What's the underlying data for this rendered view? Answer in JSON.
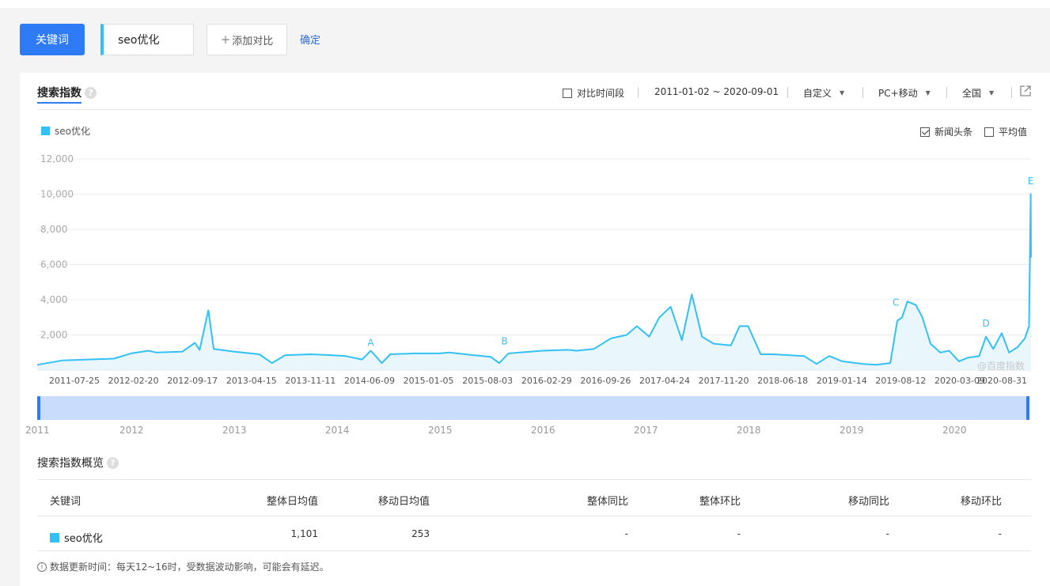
{
  "toolbar": {
    "keyword_button": "关键词",
    "keyword_value": "seo优化",
    "add_compare": "添加对比",
    "confirm": "确定"
  },
  "header": {
    "title": "搜索指数",
    "help": "?",
    "compare_period": "对比时间段",
    "date_range": "2011-01-02 ~ 2020-09-01",
    "custom": "自定义",
    "device": "PC+移动",
    "region": "全国"
  },
  "chart_options": {
    "news_headlines": "新闻头条",
    "news_checked": true,
    "average": "平均值",
    "average_checked": false
  },
  "watermark": "@百度指数",
  "colors": {
    "accent": "#2f7bf6",
    "series": "#33c1f5",
    "link": "#2f6bd6"
  },
  "chart_data": {
    "type": "area",
    "series": [
      {
        "name": "seo优化",
        "points": [
          [
            "2011-01-02",
            300
          ],
          [
            "2011-04-01",
            550
          ],
          [
            "2011-07-01",
            600
          ],
          [
            "2011-10-01",
            650
          ],
          [
            "2011-12-01",
            950
          ],
          [
            "2012-02-01",
            1100
          ],
          [
            "2012-03-01",
            1000
          ],
          [
            "2012-06-01",
            1050
          ],
          [
            "2012-07-15",
            1550
          ],
          [
            "2012-08-01",
            1150
          ],
          [
            "2012-09-01",
            3400
          ],
          [
            "2012-09-20",
            1200
          ],
          [
            "2012-12-01",
            1050
          ],
          [
            "2013-03-01",
            900
          ],
          [
            "2013-04-15",
            400
          ],
          [
            "2013-06-01",
            850
          ],
          [
            "2013-09-01",
            900
          ],
          [
            "2013-11-11",
            850
          ],
          [
            "2014-01-01",
            800
          ],
          [
            "2014-03-01",
            600
          ],
          [
            "2014-04-01",
            1100
          ],
          [
            "2014-05-10",
            400
          ],
          [
            "2014-06-09",
            900
          ],
          [
            "2014-09-01",
            950
          ],
          [
            "2014-12-01",
            950
          ],
          [
            "2015-01-05",
            1000
          ],
          [
            "2015-04-01",
            850
          ],
          [
            "2015-06-01",
            750
          ],
          [
            "2015-07-01",
            400
          ],
          [
            "2015-08-03",
            950
          ],
          [
            "2015-12-01",
            1100
          ],
          [
            "2016-02-29",
            1150
          ],
          [
            "2016-04-01",
            1100
          ],
          [
            "2016-06-01",
            1200
          ],
          [
            "2016-08-01",
            1800
          ],
          [
            "2016-09-26",
            2000
          ],
          [
            "2016-11-01",
            2500
          ],
          [
            "2016-12-15",
            1900
          ],
          [
            "2017-01-20",
            3000
          ],
          [
            "2017-03-01",
            3600
          ],
          [
            "2017-04-10",
            1700
          ],
          [
            "2017-05-15",
            4300
          ],
          [
            "2017-06-20",
            1900
          ],
          [
            "2017-08-01",
            1500
          ],
          [
            "2017-10-01",
            1400
          ],
          [
            "2017-11-01",
            2500
          ],
          [
            "2017-12-01",
            2500
          ],
          [
            "2018-01-15",
            900
          ],
          [
            "2018-03-01",
            900
          ],
          [
            "2018-06-18",
            800
          ],
          [
            "2018-08-01",
            350
          ],
          [
            "2018-09-15",
            800
          ],
          [
            "2018-11-01",
            500
          ],
          [
            "2019-01-14",
            350
          ],
          [
            "2019-03-01",
            300
          ],
          [
            "2019-04-20",
            400
          ],
          [
            "2019-05-15",
            2800
          ],
          [
            "2019-06-01",
            3000
          ],
          [
            "2019-06-20",
            3900
          ],
          [
            "2019-07-20",
            3700
          ],
          [
            "2019-08-12",
            3000
          ],
          [
            "2019-09-10",
            1500
          ],
          [
            "2019-10-15",
            1000
          ],
          [
            "2019-11-15",
            1100
          ],
          [
            "2019-12-20",
            500
          ],
          [
            "2020-01-20",
            700
          ],
          [
            "2020-03-01",
            800
          ],
          [
            "2020-03-25",
            1900
          ],
          [
            "2020-04-20",
            1200
          ],
          [
            "2020-05-20",
            2100
          ],
          [
            "2020-06-15",
            1000
          ],
          [
            "2020-07-15",
            1300
          ],
          [
            "2020-08-10",
            1800
          ],
          [
            "2020-08-25",
            2500
          ],
          [
            "2020-08-31",
            10000
          ],
          [
            "2020-09-01",
            6400
          ]
        ]
      }
    ],
    "ylim": [
      0,
      12000
    ],
    "yticks": [
      "12,000",
      "10,000",
      "8,000",
      "6,000",
      "4,000",
      "2,000"
    ],
    "xticks": [
      "2011-07-25",
      "2012-02-20",
      "2012-09-17",
      "2013-04-15",
      "2013-11-11",
      "2014-06-09",
      "2015-01-05",
      "2015-08-03",
      "2016-02-29",
      "2016-09-26",
      "2017-04-24",
      "2017-11-20",
      "2018-06-18",
      "2019-01-14",
      "2019-08-12",
      "2020-03-09",
      "2020-08-31"
    ],
    "annotations": [
      {
        "label": "A",
        "date": "2014-04-01",
        "value": 1100
      },
      {
        "label": "B",
        "date": "2015-07-20",
        "value": 1200
      },
      {
        "label": "C",
        "date": "2019-05-10",
        "value": 3400
      },
      {
        "label": "D",
        "date": "2020-03-25",
        "value": 2200
      },
      {
        "label": "E",
        "date": "2020-08-31",
        "value": 10300
      }
    ],
    "grid": true,
    "legend": "top-left"
  },
  "timeline": {
    "years": [
      "2011",
      "2012",
      "2013",
      "2014",
      "2015",
      "2016",
      "2017",
      "2018",
      "2019",
      "2020"
    ]
  },
  "overview": {
    "title": "搜索指数概览",
    "columns": [
      "关键词",
      "整体日均值",
      "移动日均值",
      "整体同比",
      "整体环比",
      "移动同比",
      "移动环比"
    ],
    "row": {
      "keyword": "seo优化",
      "overall_daily": "1,101",
      "mobile_daily": "253",
      "overall_yoy": "-",
      "overall_mom": "-",
      "mobile_yoy": "-",
      "mobile_mom": "-"
    }
  },
  "footer_note": "数据更新时间：每天12~16时，受数据波动影响，可能会有延迟。"
}
